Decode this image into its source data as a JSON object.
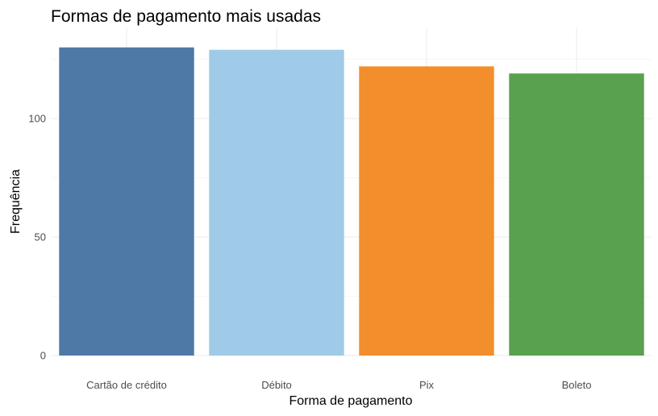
{
  "chart_data": {
    "type": "bar",
    "title": "Formas de pagamento mais usadas",
    "xlabel": "Forma de pagamento",
    "ylabel": "Frequência",
    "categories": [
      "Cartão de crédito",
      "Débito",
      "Pix",
      "Boleto"
    ],
    "values": [
      130,
      129,
      122,
      119
    ],
    "colors": [
      "#4e79a7",
      "#a0cbe8",
      "#f28e2b",
      "#59a14f"
    ],
    "ylim": [
      0,
      135
    ],
    "yticks": [
      0,
      50,
      100
    ],
    "grid": true,
    "legend": "none"
  }
}
